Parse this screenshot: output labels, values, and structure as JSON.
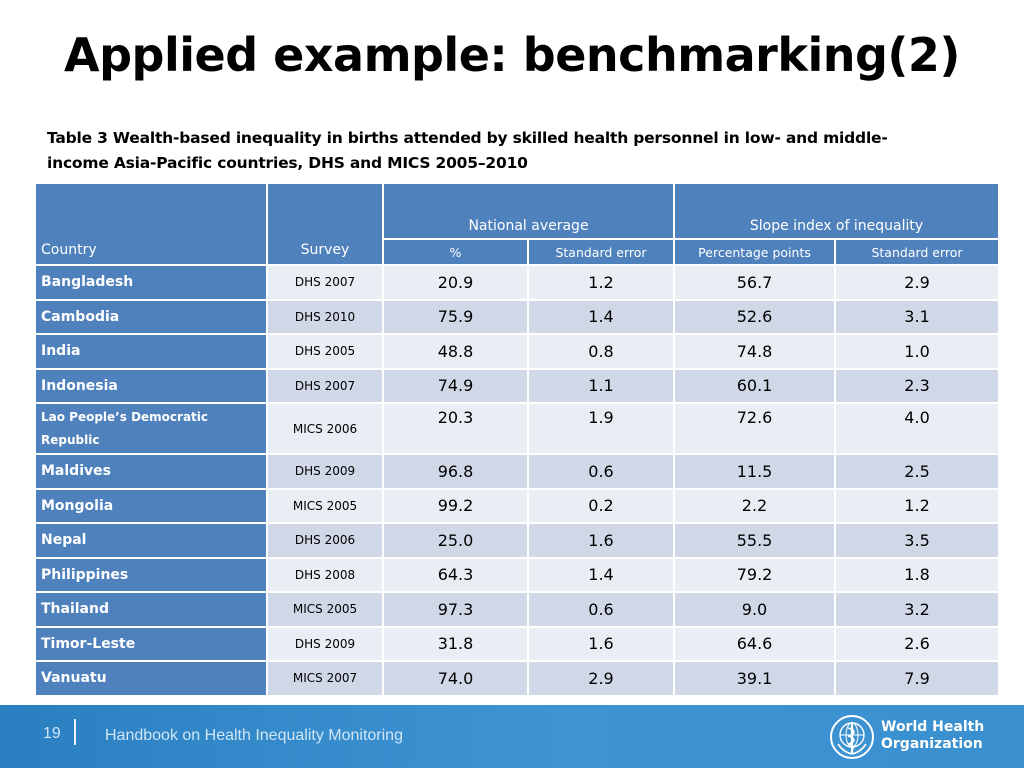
{
  "slide": {
    "title": "Applied example: benchmarking(2)",
    "caption_line1": "Table 3 Wealth-based inequality in births attended by skilled health personnel in low- and middle-",
    "caption_line2": "income Asia-Pacific countries, DHS and MICS 2005–2010"
  },
  "table": {
    "headers": {
      "country": "Country",
      "survey": "Survey",
      "national_average": "National average",
      "slope_index": "Slope index of inequality",
      "percent": "%",
      "standard_error": "Standard error",
      "percentage_points": "Percentage points",
      "standard_error_2": "Standard error"
    },
    "rows": [
      {
        "country": "Bangladesh",
        "survey": "DHS 2007",
        "nat_avg": "20.9",
        "nat_se": "1.2",
        "sii": "56.7",
        "sii_se": "2.9"
      },
      {
        "country": "Cambodia",
        "survey": "DHS 2010",
        "nat_avg": "75.9",
        "nat_se": "1.4",
        "sii": "52.6",
        "sii_se": "3.1"
      },
      {
        "country": "India",
        "survey": "DHS 2005",
        "nat_avg": "48.8",
        "nat_se": "0.8",
        "sii": "74.8",
        "sii_se": "1.0"
      },
      {
        "country": "Indonesia",
        "survey": "DHS 2007",
        "nat_avg": "74.9",
        "nat_se": "1.1",
        "sii": "60.1",
        "sii_se": "2.3"
      },
      {
        "country_line1": "Lao People’s Democratic",
        "country_line2": "Republic",
        "survey": "MICS 2006",
        "nat_avg": "20.3",
        "nat_se": "1.9",
        "sii": "72.6",
        "sii_se": "4.0"
      },
      {
        "country": "Maldives",
        "survey": "DHS 2009",
        "nat_avg": "96.8",
        "nat_se": "0.6",
        "sii": "11.5",
        "sii_se": "2.5"
      },
      {
        "country": "Mongolia",
        "survey": "MICS 2005",
        "nat_avg": "99.2",
        "nat_se": "0.2",
        "sii": "2.2",
        "sii_se": "1.2"
      },
      {
        "country": "Nepal",
        "survey": "DHS 2006",
        "nat_avg": "25.0",
        "nat_se": "1.6",
        "sii": "55.5",
        "sii_se": "3.5"
      },
      {
        "country": "Philippines",
        "survey": "DHS 2008",
        "nat_avg": "64.3",
        "nat_se": "1.4",
        "sii": "79.2",
        "sii_se": "1.8"
      },
      {
        "country": "Thailand",
        "survey": "MICS 2005",
        "nat_avg": "97.3",
        "nat_se": "0.6",
        "sii": "9.0",
        "sii_se": "3.2"
      },
      {
        "country": "Timor-Leste",
        "survey": "DHS 2009",
        "nat_avg": "31.8",
        "nat_se": "1.6",
        "sii": "64.6",
        "sii_se": "2.6"
      },
      {
        "country": "Vanuatu",
        "survey": "MICS 2007",
        "nat_avg": "74.0",
        "nat_se": "2.9",
        "sii": "39.1",
        "sii_se": "7.9"
      }
    ]
  },
  "footer": {
    "page_number": "19",
    "handbook_title": "Handbook on Health Inequality Monitoring",
    "org_line1": "World Health",
    "org_line2": "Organization",
    "logo_icon": "who-emblem-icon"
  },
  "colors": {
    "header_blue": "#4f81bd",
    "row_light": "#e9edf4",
    "row_dark": "#d0d8e8",
    "footer_blue": "#3a8fce"
  }
}
